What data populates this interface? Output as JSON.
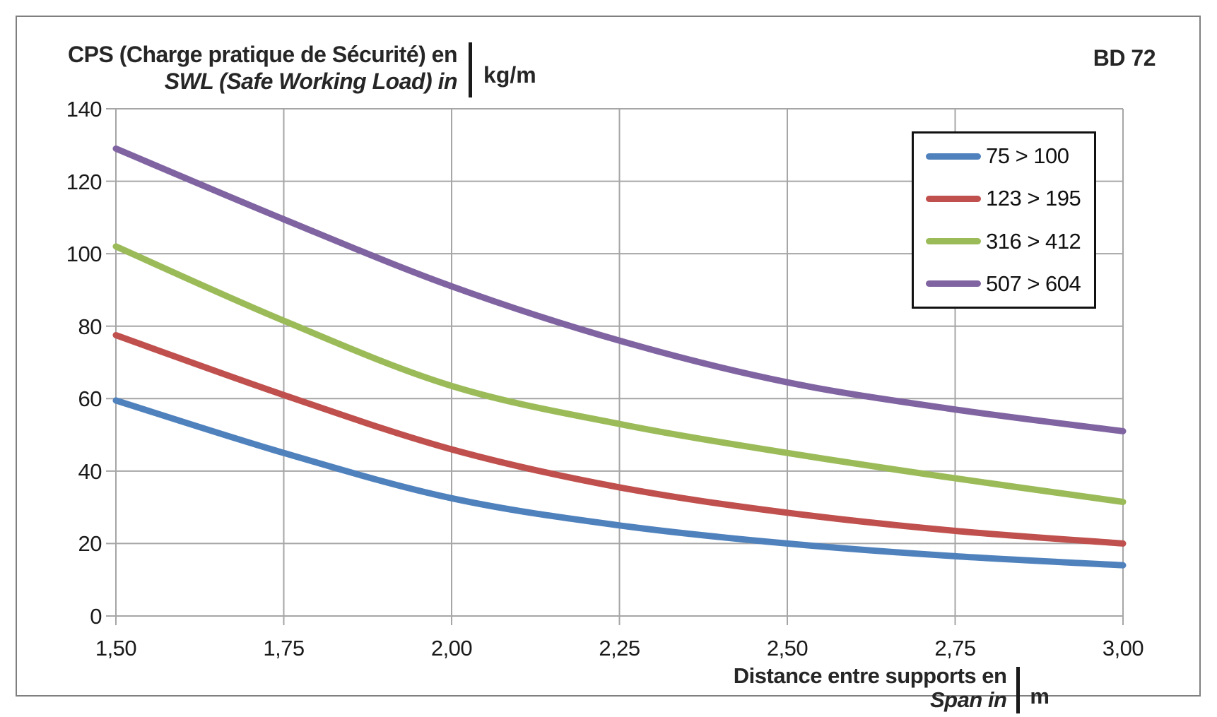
{
  "header": {
    "title_line1": "CPS (Charge pratique de Sécurité) en",
    "title_line2": "SWL (Safe Working Load) in",
    "unit": "kg/m",
    "code": "BD 72"
  },
  "x_axis_title": {
    "line1": "Distance entre supports en",
    "line2": "Span in",
    "unit": "m"
  },
  "chart_data": {
    "type": "line",
    "title": "CPS (Charge pratique de Sécurité) en / SWL (Safe Working Load) in kg/m",
    "xlabel": "Distance entre supports en / Span in m",
    "ylabel": "kg/m",
    "x": [
      1.5,
      1.75,
      2.0,
      2.25,
      2.5,
      2.75,
      3.0
    ],
    "x_tick_labels": [
      "1,50",
      "1,75",
      "2,00",
      "2,25",
      "2,50",
      "2,75",
      "3,00"
    ],
    "y_ticks": [
      0,
      20,
      40,
      60,
      80,
      100,
      120,
      140
    ],
    "y_tick_labels": [
      "0",
      "20",
      "40",
      "60",
      "80",
      "100",
      "120",
      "140"
    ],
    "xlim": [
      1.5,
      3.0
    ],
    "ylim": [
      0,
      140
    ],
    "grid": true,
    "smooth_lines": true,
    "legend_position": "top-right",
    "series": [
      {
        "name": "75 > 100",
        "color": "#4F81BD",
        "values": [
          59.5,
          45,
          32.5,
          25,
          20,
          16.5,
          14
        ]
      },
      {
        "name": "123 > 195",
        "color": "#C0504D",
        "values": [
          77.5,
          61,
          46,
          35.5,
          28.5,
          23.5,
          20
        ]
      },
      {
        "name": "316 > 412",
        "color": "#9BBB59",
        "values": [
          102,
          81.5,
          63.5,
          53,
          45,
          38,
          31.5
        ]
      },
      {
        "name": "507 > 604",
        "color": "#8064A2",
        "values": [
          129,
          109.5,
          91,
          76,
          64.5,
          57,
          51
        ]
      }
    ]
  },
  "style_colors": {
    "grid": "#A6A6A6",
    "frame_border": "#7F7F7F",
    "text": "#262626",
    "legend_border": "#111111"
  }
}
